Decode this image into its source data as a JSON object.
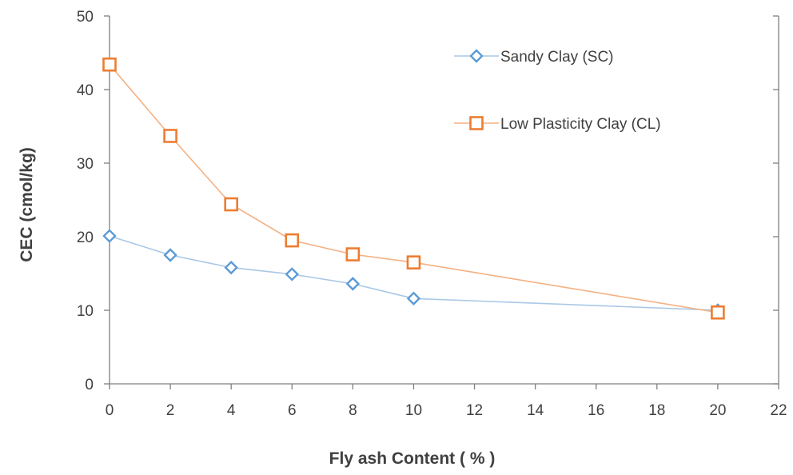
{
  "chart_data": {
    "type": "line",
    "title": "",
    "xlabel": "Fly ash Content ( % )",
    "ylabel": "CEC (cmol/kg)",
    "xlim": [
      0,
      22
    ],
    "ylim": [
      0,
      50
    ],
    "xticks": [
      0,
      2,
      4,
      6,
      8,
      10,
      12,
      14,
      16,
      18,
      20,
      22
    ],
    "yticks": [
      0,
      10,
      20,
      30,
      40,
      50
    ],
    "grid": false,
    "legend_position": "top-right",
    "series": [
      {
        "name": "Sandy Clay (SC)",
        "marker": "diamond",
        "line_color": "#A9C8E6",
        "marker_color": "#5B9BD5",
        "x": [
          0,
          2,
          4,
          6,
          8,
          10,
          20
        ],
        "y": [
          20.1,
          17.5,
          15.8,
          14.9,
          13.6,
          11.6,
          10.0
        ]
      },
      {
        "name": "Low Plasticity Clay (CL)",
        "marker": "square",
        "line_color": "#F4B183",
        "marker_color": "#ED7D31",
        "x": [
          0,
          2,
          4,
          6,
          8,
          10,
          20
        ],
        "y": [
          43.4,
          33.7,
          24.4,
          19.5,
          17.6,
          16.5,
          9.7
        ]
      }
    ]
  }
}
